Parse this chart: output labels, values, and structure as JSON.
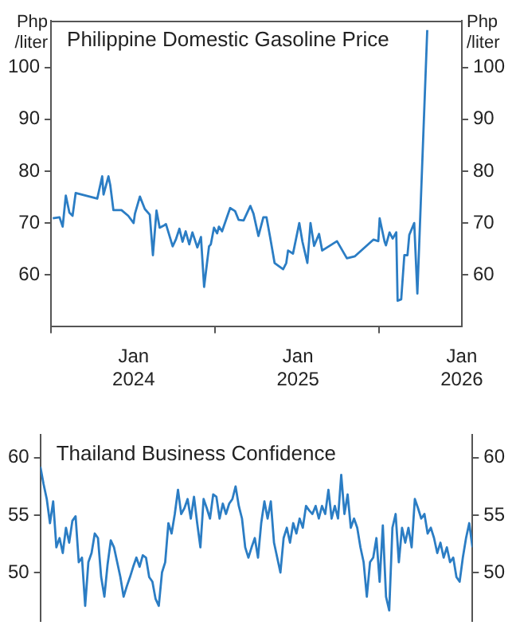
{
  "chart_data": [
    {
      "type": "line",
      "title": "Philippine Domestic Gasoline Price",
      "ylabel": "Php /liter",
      "y2label": "Php /liter",
      "color": "#2b7dc4",
      "marker": "none",
      "legend": false,
      "grid": false,
      "x": [
        "2023-07-05",
        "2023-07-20",
        "2023-07-27",
        "2023-08-03",
        "2023-08-11",
        "2023-08-18",
        "2023-08-25",
        "2023-10-12",
        "2023-10-23",
        "2023-10-26",
        "2023-11-06",
        "2023-11-10",
        "2023-11-17",
        "2023-12-05",
        "2023-12-20",
        "2024-01-01",
        "2024-01-04",
        "2024-01-15",
        "2024-01-26",
        "2024-02-06",
        "2024-02-13",
        "2024-02-21",
        "2024-02-28",
        "2024-03-10",
        "2024-03-13",
        "2024-03-28",
        "2024-04-04",
        "2024-04-12",
        "2024-04-19",
        "2024-04-26",
        "2024-05-04",
        "2024-05-11",
        "2024-05-22",
        "2024-05-30",
        "2024-06-06",
        "2024-06-17",
        "2024-06-21",
        "2024-06-28",
        "2024-07-05",
        "2024-07-09",
        "2024-07-16",
        "2024-08-03",
        "2024-08-14",
        "2024-08-22",
        "2024-09-02",
        "2024-09-17",
        "2024-09-24",
        "2024-10-05",
        "2024-10-16",
        "2024-10-23",
        "2024-10-31",
        "2024-11-10",
        "2024-11-29",
        "2024-12-06",
        "2024-12-10",
        "2024-12-21",
        "2025-01-04",
        "2025-01-11",
        "2025-01-22",
        "2025-01-29",
        "2025-02-06",
        "2025-02-17",
        "2025-02-24",
        "2025-03-29",
        "2025-04-20",
        "2025-05-08",
        "2025-06-18",
        "2025-06-29",
        "2025-07-02",
        "2025-07-13",
        "2025-07-16",
        "2025-07-24",
        "2025-07-31",
        "2025-08-08",
        "2025-08-11",
        "2025-08-19",
        "2025-08-26",
        "2025-09-02",
        "2025-09-06",
        "2025-09-17",
        "2025-09-24",
        "2025-10-16"
      ],
      "values": [
        70.9,
        71.1,
        69.3,
        75.3,
        72.0,
        71.4,
        75.8,
        74.7,
        79,
        75.5,
        79,
        77.3,
        72.5,
        72.5,
        71.4,
        70,
        71.8,
        75.1,
        72.7,
        71.6,
        63.8,
        72.4,
        69.1,
        69.6,
        69.8,
        65.5,
        66.8,
        68.9,
        66.4,
        68.4,
        65.9,
        68.2,
        65.3,
        67.3,
        57.7,
        65.5,
        65.9,
        69.1,
        68.0,
        69.3,
        68.4,
        72.9,
        72.3,
        70.6,
        70.5,
        73.3,
        71.8,
        67.5,
        71.1,
        71.1,
        67.3,
        62.3,
        61.1,
        62.3,
        64.7,
        64.1,
        70,
        66.4,
        62.3,
        70,
        65.6,
        67.9,
        64.7,
        66.5,
        63.2,
        63.6,
        66.8,
        66.5,
        70.9,
        66.4,
        65.7,
        68.2,
        67.0,
        68.2,
        55.0,
        55.3,
        63.8,
        63.8,
        67.7,
        70,
        56.4,
        107.2
      ],
      "xlim": [
        "2023-07",
        "2026-01"
      ],
      "xticks": [
        {
          "value": "2023-07",
          "label": null
        },
        {
          "value": "2024-01",
          "label": "Jan 2024"
        },
        {
          "value": "2024-07",
          "label": null
        },
        {
          "value": "2025-01",
          "label": "Jan 2025"
        },
        {
          "value": "2025-07",
          "label": null
        },
        {
          "value": "2026-01",
          "label": "Jan 2026"
        }
      ],
      "ylim": [
        50,
        109
      ],
      "yticks": [
        60,
        70,
        80,
        90,
        100
      ],
      "y2lim": [
        50,
        109
      ],
      "y2ticks": [
        60,
        70,
        80,
        90,
        100
      ]
    },
    {
      "type": "line",
      "title": "Thailand Business Confidence",
      "color": "#2b7dc4",
      "marker": "none",
      "legend": false,
      "grid": false,
      "tick_labels": "y",
      "categories": [
        null,
        null,
        null,
        null,
        null,
        null,
        null,
        null,
        null,
        null,
        null,
        null,
        null,
        null,
        null,
        null,
        null,
        null,
        null,
        null,
        null,
        null,
        null,
        null,
        null,
        null,
        null,
        null,
        null,
        null,
        null,
        null,
        null,
        null,
        null,
        null,
        null,
        null,
        null,
        null,
        null,
        null,
        null,
        null,
        null,
        null,
        null,
        null,
        null,
        null,
        null,
        null,
        null,
        null,
        null,
        null,
        null,
        null,
        null,
        null,
        null,
        null,
        null,
        null,
        null,
        null,
        null,
        null,
        null,
        null,
        null,
        null,
        null,
        null,
        null,
        null,
        null,
        null,
        null,
        null,
        null,
        null,
        null,
        null,
        null,
        null,
        null,
        null,
        null,
        null,
        null,
        null,
        null,
        null,
        null,
        null,
        null,
        null,
        null,
        null,
        null,
        null,
        null,
        null,
        null,
        null,
        null,
        null,
        null,
        null,
        null,
        null,
        null,
        null,
        null,
        null,
        null,
        null,
        null,
        null,
        null,
        null,
        null,
        null,
        null,
        null,
        null,
        null,
        null,
        null,
        null,
        null,
        null,
        null,
        null,
        null
      ],
      "values": [
        59.2,
        57.7,
        56.4,
        54.3,
        56.2,
        52.2,
        53.0,
        51.7,
        53.9,
        52.6,
        54.5,
        54.9,
        50.9,
        51.3,
        47.1,
        50.9,
        51.7,
        53.4,
        53.0,
        49.6,
        47.9,
        50.7,
        52.8,
        52.2,
        50.9,
        49.6,
        47.9,
        48.8,
        49.6,
        50.5,
        51.3,
        50.5,
        51.5,
        51.3,
        49.6,
        49.2,
        47.7,
        47.1,
        50.0,
        50.9,
        54.3,
        53.4,
        55.1,
        57.2,
        55.1,
        55.6,
        56.4,
        54.7,
        56.6,
        54.3,
        52.2,
        56.4,
        55.6,
        54.7,
        56.8,
        56.6,
        54.7,
        56.0,
        55.1,
        56.0,
        56.4,
        57.5,
        55.8,
        54.7,
        52.2,
        51.3,
        52.2,
        53.0,
        51.3,
        54.3,
        56.2,
        54.7,
        56.2,
        52.6,
        51.3,
        50.0,
        53.0,
        53.9,
        52.6,
        54.3,
        53.4,
        54.7,
        53.9,
        55.8,
        55.4,
        55.1,
        55.8,
        54.7,
        55.8,
        55.1,
        57.2,
        54.7,
        55.8,
        54.7,
        58.5,
        55.1,
        56.8,
        53.9,
        54.7,
        53.9,
        52.2,
        50.9,
        47.9,
        50.9,
        51.3,
        53.0,
        49.2,
        54.1,
        47.9,
        46.7,
        53.9,
        55.1,
        50.9,
        53.9,
        52.6,
        53.9,
        52.2,
        56.4,
        55.6,
        54.7,
        55.1,
        53.4,
        53.9,
        53.0,
        51.7,
        52.6,
        51.3,
        52.2,
        50.9,
        51.3,
        49.6,
        49.2,
        51.3,
        53.0,
        54.3,
        52.2
      ],
      "ylim": [
        45.8,
        62
      ],
      "yticks": [
        50,
        55,
        60
      ],
      "y2lim": [
        45.8,
        62
      ],
      "y2ticks": [
        50,
        55,
        60
      ]
    }
  ]
}
